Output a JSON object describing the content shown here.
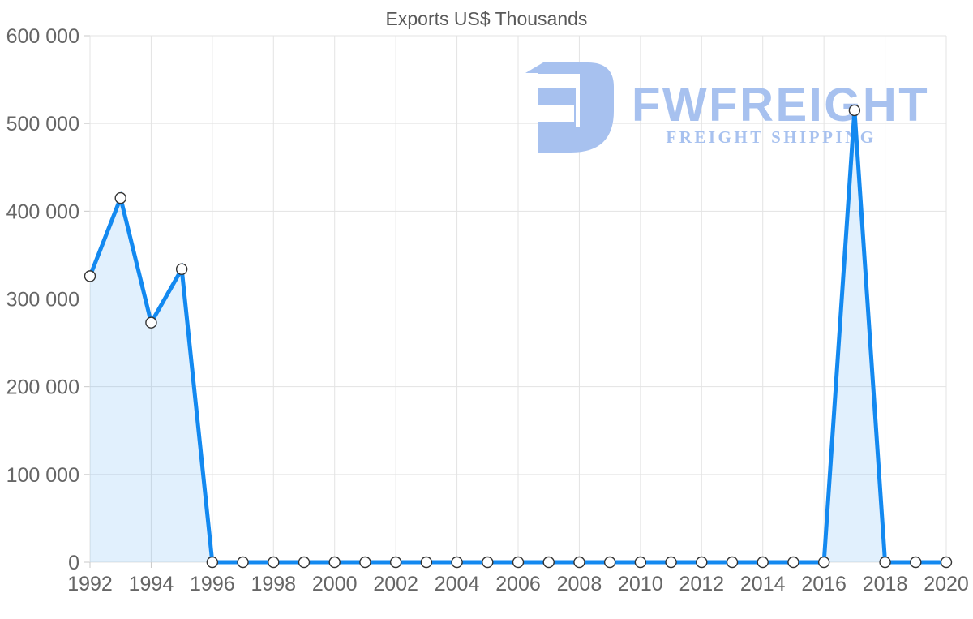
{
  "title": "Exports US$ Thousands",
  "logo": {
    "name": "FWFREIGHT",
    "tagline": "FREIGHT SHIPPING",
    "color": "#a7c1ef"
  },
  "colors": {
    "line": "#1389f0",
    "area_fill": "#1a8cf0",
    "area_fill_opacity": "0.13",
    "marker_fill": "#ffffff",
    "marker_stroke": "#333333",
    "grid": "#e3e3e3",
    "tick": "#c9c9c9",
    "axis_text": "#666666",
    "title_text": "#595959"
  },
  "y_axis": {
    "tick_labels": [
      "0",
      "100 000",
      "200 000",
      "300 000",
      "400 000",
      "500 000",
      "600 000"
    ],
    "min": 0,
    "max": 600000,
    "step": 100000
  },
  "x_axis": {
    "tick_labels": [
      "1992",
      "1994",
      "1996",
      "1998",
      "2000",
      "2002",
      "2004",
      "2006",
      "2008",
      "2010",
      "2012",
      "2014",
      "2016",
      "2018",
      "2020"
    ],
    "tick_years": [
      1992,
      1994,
      1996,
      1998,
      2000,
      2002,
      2004,
      2006,
      2008,
      2010,
      2012,
      2014,
      2016,
      2018,
      2020
    ]
  },
  "chart_data": {
    "type": "area",
    "title": "Exports US$ Thousands",
    "x": [
      1992,
      1993,
      1994,
      1995,
      1996,
      1997,
      1998,
      1999,
      2000,
      2001,
      2002,
      2003,
      2004,
      2005,
      2006,
      2007,
      2008,
      2009,
      2010,
      2011,
      2012,
      2013,
      2014,
      2015,
      2016,
      2017,
      2018,
      2019,
      2020
    ],
    "values": [
      326000,
      415000,
      273000,
      334000,
      0,
      0,
      0,
      0,
      0,
      0,
      0,
      0,
      0,
      0,
      0,
      0,
      0,
      0,
      0,
      0,
      0,
      0,
      0,
      0,
      0,
      515000,
      0,
      0,
      0
    ],
    "series_name": "Exports US$ Thousands",
    "xlabel": "",
    "ylabel": "",
    "ylim": [
      0,
      600000
    ],
    "xlim": [
      1992,
      2020
    ],
    "grid": true,
    "legend": false,
    "marker": "circle"
  }
}
